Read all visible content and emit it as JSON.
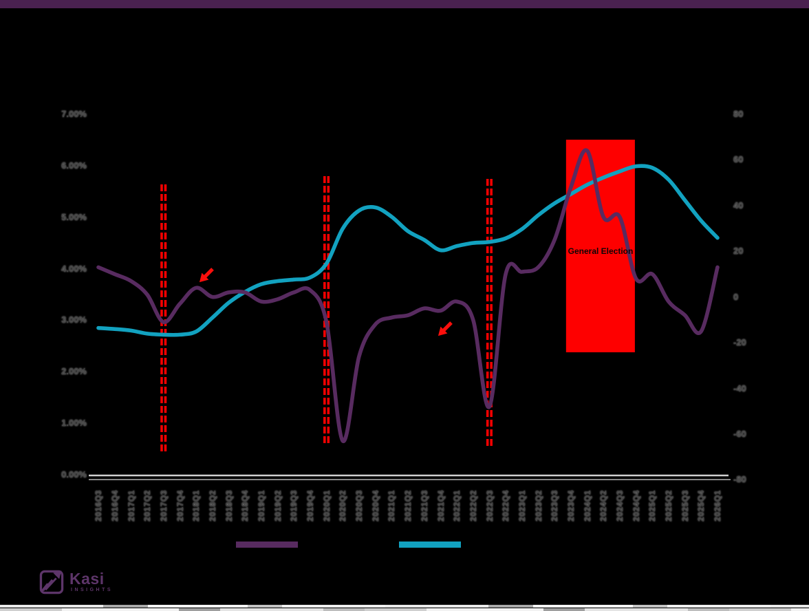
{
  "topbar": {
    "color": "#4a2150"
  },
  "chart_data": {
    "type": "line",
    "categories": [
      "2016Q3",
      "2016Q4",
      "2017Q1",
      "2017Q2",
      "2017Q3",
      "2017Q4",
      "2018Q1",
      "2018Q2",
      "2018Q3",
      "2018Q4",
      "2019Q1",
      "2019Q2",
      "2019Q3",
      "2019Q4",
      "2020Q1",
      "2020Q2",
      "2020Q3",
      "2020Q4",
      "2021Q1",
      "2021Q2",
      "2021Q3",
      "2021Q4",
      "2022Q1",
      "2022Q2",
      "2022Q3",
      "2022Q4",
      "2023Q1",
      "2023Q2",
      "2023Q3",
      "2023Q4",
      "2024Q1",
      "2024Q2",
      "2024Q3",
      "2024Q4",
      "2025Q1",
      "2025Q2",
      "2025Q3",
      "2025Q4",
      "2026Q1"
    ],
    "series": [
      {
        "name": "teal-series",
        "axis": "left",
        "color": "#12a2c0",
        "values": [
          2.85,
          2.83,
          2.8,
          2.74,
          2.72,
          2.72,
          2.78,
          3.05,
          3.34,
          3.55,
          3.7,
          3.76,
          3.79,
          3.83,
          4.1,
          4.78,
          5.13,
          5.19,
          5.01,
          4.73,
          4.56,
          4.36,
          4.44,
          4.5,
          4.52,
          4.59,
          4.77,
          5.04,
          5.27,
          5.45,
          5.63,
          5.77,
          5.89,
          5.99,
          5.96,
          5.73,
          5.33,
          4.93,
          4.6
        ]
      },
      {
        "name": "purple-series",
        "axis": "right",
        "color": "#582b60",
        "values": [
          13,
          10,
          7,
          1,
          -11,
          -3,
          4,
          0,
          2,
          2,
          -2,
          -1,
          2,
          3,
          -11,
          -63,
          -26,
          -12,
          -9,
          -8,
          -5,
          -6,
          -2,
          -10,
          -48,
          10,
          11,
          13,
          25,
          48,
          64,
          35,
          35,
          8,
          10,
          -2,
          -8,
          -15,
          13
        ]
      }
    ],
    "left_axis": {
      "min": 0,
      "max": 7,
      "ticks": [
        "7.00%",
        "6.00%",
        "5.00%",
        "4.00%",
        "3.00%",
        "2.00%",
        "1.00%",
        "0.00%"
      ]
    },
    "right_axis": {
      "min": -80,
      "max": 80,
      "ticks": [
        "80",
        "60",
        "40",
        "20",
        "0",
        "-20",
        "-40",
        "-60",
        "-80"
      ]
    },
    "annotations": {
      "event_line_color": "#ff0000",
      "event_lines": [
        "2017Q3",
        "2020Q1",
        "2022Q3"
      ],
      "highlight_label": "General Election",
      "highlight_color": "#fe0000",
      "highlight_range": [
        "2023Q4",
        "2024Q3"
      ],
      "arrow_color": "#fb0f0c"
    },
    "legend": [
      {
        "name": "purple-series",
        "color": "#582b60"
      },
      {
        "name": "teal-series",
        "color": "#12a2c0"
      }
    ],
    "axis_line_color": "#cfcfcf"
  },
  "logo": {
    "title": "Kasi",
    "subtitle": "INSIGHTS",
    "color": "#5d3569"
  }
}
